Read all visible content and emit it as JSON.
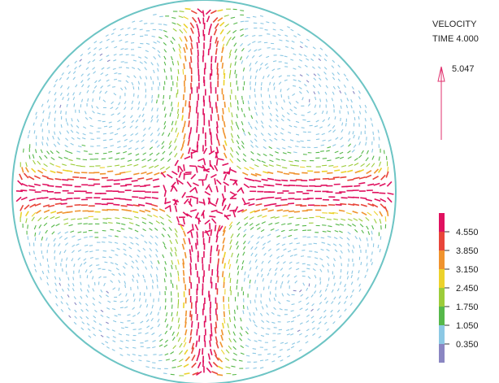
{
  "header": {
    "title": "VELOCITY",
    "time": "TIME 4.000"
  },
  "reference_vector": {
    "label": "5.047",
    "color": "#e0306e"
  },
  "boundary_color": "#6cc4c4",
  "colorbar": {
    "colors": [
      "#e0115f",
      "#e8453a",
      "#f0932e",
      "#ecd22c",
      "#9ccc3a",
      "#56b84a",
      "#8cc8e4",
      "#8a86c2"
    ],
    "labels": [
      "4.550",
      "3.850",
      "3.150",
      "2.450",
      "1.750",
      "1.050",
      "0.350"
    ]
  }
}
